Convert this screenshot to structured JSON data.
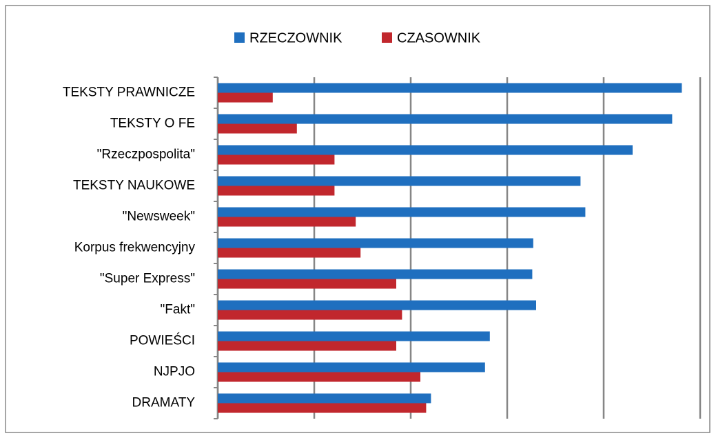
{
  "chart_data": {
    "type": "hbar",
    "categories": [
      "TEKSTY PRAWNICZE",
      "TEKSTY O FE",
      "\"Rzeczpospolita\"",
      "TEKSTY NAUKOWE",
      "\"Newsweek\"",
      "Korpus frekwencyjny",
      "\"Super Express\"",
      "\"Fakt\"",
      "POWIEŚCI",
      "NJPJO",
      "DRAMATY"
    ],
    "series": [
      {
        "name": "RZECZOWNIK",
        "color": "#1f6fbf",
        "values": [
          4.81,
          4.71,
          4.3,
          3.76,
          3.81,
          3.27,
          3.26,
          3.3,
          2.82,
          2.77,
          2.21
        ]
      },
      {
        "name": "CZASOWNIK",
        "color": "#c1272d",
        "values": [
          0.57,
          0.82,
          1.21,
          1.21,
          1.43,
          1.48,
          1.85,
          1.91,
          1.85,
          2.1,
          2.16
        ]
      }
    ],
    "xlim": [
      0,
      5
    ],
    "xticks": [
      0,
      1,
      2,
      3,
      4,
      5
    ],
    "grid": true,
    "legend": "top"
  }
}
